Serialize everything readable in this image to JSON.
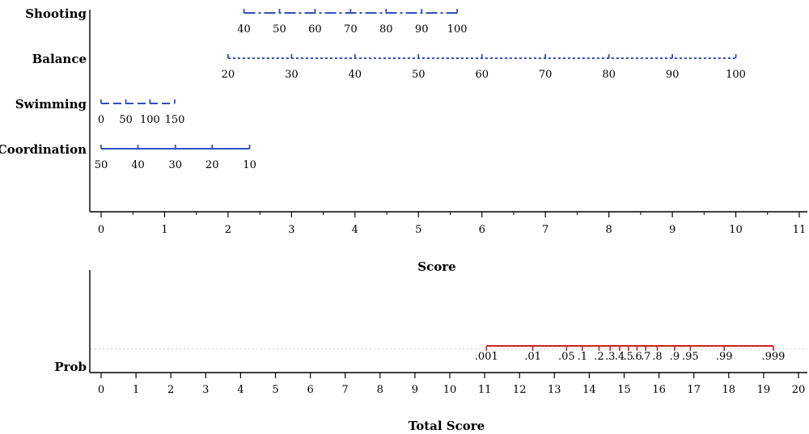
{
  "chart_data": [
    {
      "type": "nomogram",
      "title": "",
      "xlabel": "Score",
      "xlim": [
        0,
        11
      ],
      "axis_ticks": [
        0,
        1,
        2,
        3,
        4,
        5,
        6,
        7,
        8,
        9,
        10,
        11
      ],
      "grid": false,
      "color": "#2f4fc0",
      "predictors": [
        {
          "name": "Shooting",
          "style": "dash-dot",
          "points": [
            {
              "label": "40",
              "score": 2.25
            },
            {
              "label": "50",
              "score": 2.81
            },
            {
              "label": "60",
              "score": 3.37
            },
            {
              "label": "70",
              "score": 3.93
            },
            {
              "label": "80",
              "score": 4.49
            },
            {
              "label": "90",
              "score": 5.05
            },
            {
              "label": "100",
              "score": 5.61
            }
          ]
        },
        {
          "name": "Balance",
          "style": "dotted",
          "points": [
            {
              "label": "20",
              "score": 2.0
            },
            {
              "label": "30",
              "score": 3.0
            },
            {
              "label": "40",
              "score": 4.0
            },
            {
              "label": "50",
              "score": 5.0
            },
            {
              "label": "60",
              "score": 6.0
            },
            {
              "label": "70",
              "score": 7.0
            },
            {
              "label": "80",
              "score": 8.0
            },
            {
              "label": "90",
              "score": 9.0
            },
            {
              "label": "100",
              "score": 10.0
            }
          ]
        },
        {
          "name": "Swimming",
          "style": "dashed",
          "points": [
            {
              "label": "0",
              "score": 0.0
            },
            {
              "label": "50",
              "score": 0.39
            },
            {
              "label": "100",
              "score": 0.77
            },
            {
              "label": "150",
              "score": 1.16
            }
          ]
        },
        {
          "name": "Coordination",
          "style": "solid",
          "points": [
            {
              "label": "50",
              "score": 0.0
            },
            {
              "label": "40",
              "score": 0.58
            },
            {
              "label": "30",
              "score": 1.17
            },
            {
              "label": "20",
              "score": 1.75
            },
            {
              "label": "10",
              "score": 2.34
            }
          ]
        }
      ]
    },
    {
      "type": "nomogram",
      "title": "",
      "xlabel": "Total Score",
      "xlim": [
        0,
        20
      ],
      "axis_ticks": [
        0,
        1,
        2,
        3,
        4,
        5,
        6,
        7,
        8,
        9,
        10,
        11,
        12,
        13,
        14,
        15,
        16,
        17,
        18,
        19,
        20
      ],
      "grid": false,
      "color": "#cc2222",
      "outcome": {
        "name": "Prob",
        "points": [
          {
            "label": ".001",
            "score": 11.05
          },
          {
            "label": ".01",
            "score": 12.38
          },
          {
            "label": ".05",
            "score": 13.35
          },
          {
            "label": ".1",
            "score": 13.8
          },
          {
            "label": ".2",
            "score": 14.28
          },
          {
            "label": ".3",
            "score": 14.6
          },
          {
            "label": ".4",
            "score": 14.87
          },
          {
            "label": ".5",
            "score": 15.12
          },
          {
            "label": ".6",
            "score": 15.37
          },
          {
            "label": ".7",
            "score": 15.62
          },
          {
            "label": ".8",
            "score": 15.95
          },
          {
            "label": ".9",
            "score": 16.45
          },
          {
            "label": ".95",
            "score": 16.9
          },
          {
            "label": ".99",
            "score": 17.87
          },
          {
            "label": ".999",
            "score": 19.28
          }
        ]
      }
    }
  ]
}
